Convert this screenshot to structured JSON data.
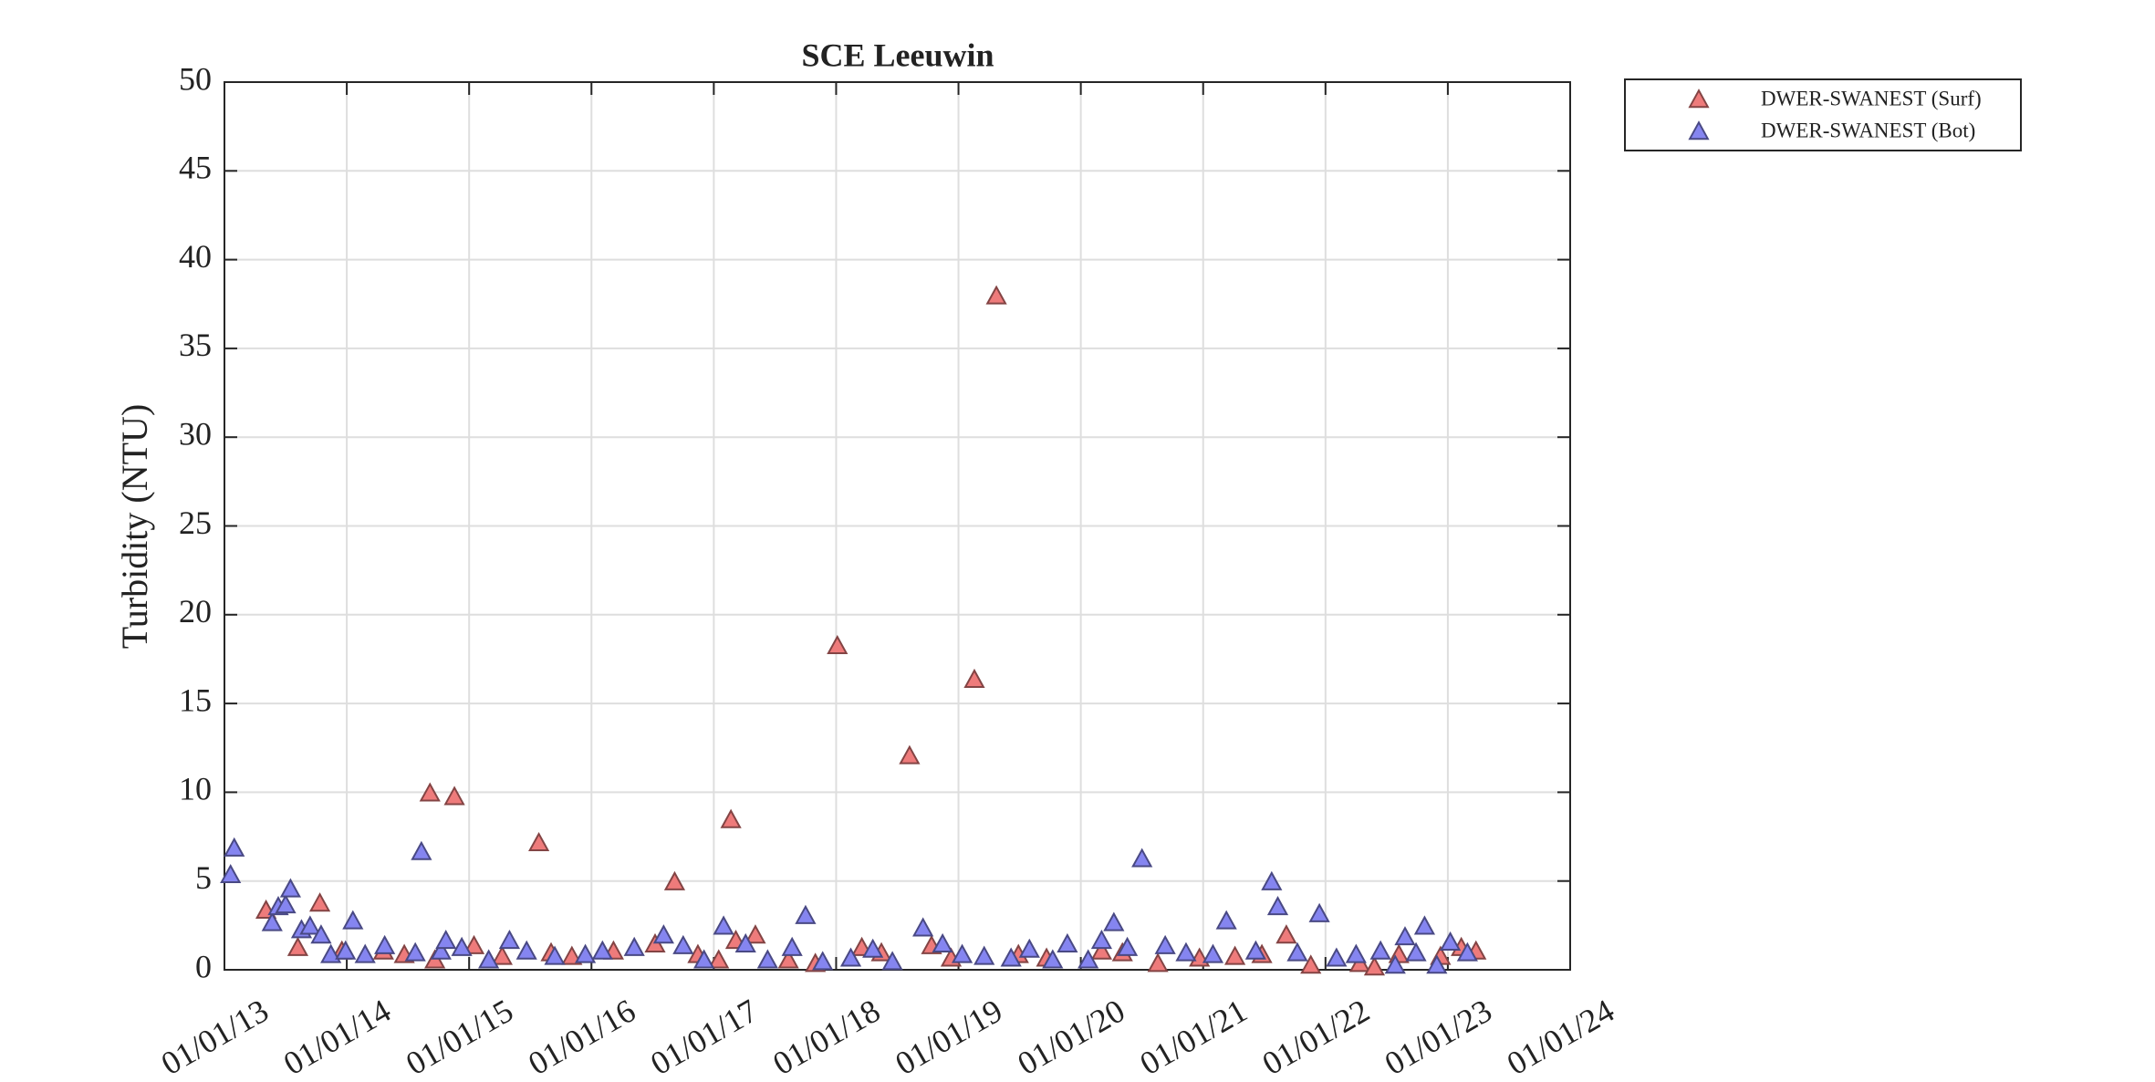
{
  "chart_data": {
    "type": "scatter",
    "title": "SCE Leeuwin",
    "y_label": "Turbidity (NTU)",
    "xlim": [
      13,
      24
    ],
    "ylim": [
      0,
      50
    ],
    "xticks": [
      {
        "value": 13,
        "label": "01/01/13"
      },
      {
        "value": 14,
        "label": "01/01/14"
      },
      {
        "value": 15,
        "label": "01/01/15"
      },
      {
        "value": 16,
        "label": "01/01/16"
      },
      {
        "value": 17,
        "label": "01/01/17"
      },
      {
        "value": 18,
        "label": "01/01/18"
      },
      {
        "value": 19,
        "label": "01/01/19"
      },
      {
        "value": 20,
        "label": "01/01/20"
      },
      {
        "value": 21,
        "label": "01/01/21"
      },
      {
        "value": 22,
        "label": "01/01/22"
      },
      {
        "value": 23,
        "label": "01/01/23"
      },
      {
        "value": 24,
        "label": "01/01/24"
      }
    ],
    "yticks": [
      0,
      5,
      10,
      15,
      20,
      25,
      30,
      35,
      40,
      45,
      50
    ],
    "grid": true,
    "legend": "outside-right-top",
    "marker": "triangle",
    "series": [
      {
        "name": "DWER-SWANEST (Surf)",
        "color": "#ee7b7b",
        "x": [
          13.34,
          13.6,
          13.78,
          13.96,
          14.3,
          14.47,
          14.68,
          14.72,
          14.88,
          15.04,
          15.27,
          15.57,
          15.67,
          15.84,
          16.18,
          16.52,
          16.68,
          16.87,
          17.04,
          17.14,
          17.18,
          17.34,
          17.61,
          17.83,
          18.01,
          18.21,
          18.37,
          18.6,
          18.78,
          18.94,
          19.13,
          19.31,
          19.49,
          19.72,
          20.17,
          20.34,
          20.63,
          20.97,
          21.26,
          21.48,
          21.68,
          21.88,
          22.28,
          22.4,
          22.6,
          22.94,
          23.11,
          23.23
        ],
        "values": [
          3.3,
          1.2,
          3.7,
          1.0,
          1.0,
          0.8,
          9.9,
          0.5,
          9.7,
          1.3,
          0.7,
          7.1,
          0.9,
          0.7,
          1.0,
          1.4,
          4.9,
          0.8,
          0.5,
          8.4,
          1.6,
          1.9,
          0.5,
          0.3,
          18.2,
          1.2,
          0.9,
          12.0,
          1.3,
          0.6,
          16.3,
          37.9,
          0.8,
          0.6,
          1.0,
          0.9,
          0.3,
          0.6,
          0.7,
          0.8,
          1.9,
          0.2,
          0.3,
          0.1,
          0.8,
          0.7,
          1.2,
          1.0
        ]
      },
      {
        "name": "DWER-SWANEST (Bot)",
        "color": "#8585f0",
        "x": [
          13.05,
          13.08,
          13.39,
          13.44,
          13.5,
          13.54,
          13.63,
          13.7,
          13.79,
          13.87,
          13.99,
          14.05,
          14.15,
          14.31,
          14.56,
          14.61,
          14.77,
          14.81,
          14.94,
          15.16,
          15.33,
          15.47,
          15.7,
          15.95,
          16.09,
          16.35,
          16.59,
          16.75,
          16.92,
          17.08,
          17.26,
          17.44,
          17.64,
          17.75,
          17.89,
          18.12,
          18.3,
          18.46,
          18.71,
          18.87,
          19.03,
          19.21,
          19.43,
          19.58,
          19.77,
          19.89,
          20.06,
          20.17,
          20.27,
          20.38,
          20.5,
          20.69,
          20.86,
          21.08,
          21.19,
          21.43,
          21.56,
          21.61,
          21.77,
          21.95,
          22.09,
          22.25,
          22.45,
          22.57,
          22.65,
          22.74,
          22.81,
          22.91,
          23.02,
          23.16
        ],
        "values": [
          5.3,
          6.8,
          2.6,
          3.5,
          3.6,
          4.5,
          2.2,
          2.4,
          1.9,
          0.8,
          1.0,
          2.7,
          0.8,
          1.3,
          0.9,
          6.6,
          1.0,
          1.6,
          1.2,
          0.5,
          1.6,
          1.0,
          0.7,
          0.8,
          1.0,
          1.2,
          1.9,
          1.3,
          0.5,
          2.4,
          1.4,
          0.5,
          1.2,
          3.0,
          0.4,
          0.6,
          1.1,
          0.4,
          2.3,
          1.4,
          0.8,
          0.7,
          0.6,
          1.1,
          0.5,
          1.4,
          0.5,
          1.6,
          2.6,
          1.2,
          6.2,
          1.3,
          0.9,
          0.8,
          2.7,
          1.0,
          4.9,
          3.5,
          0.9,
          3.1,
          0.6,
          0.8,
          1.0,
          0.2,
          1.8,
          0.9,
          2.4,
          0.2,
          1.5,
          0.9
        ]
      }
    ]
  }
}
